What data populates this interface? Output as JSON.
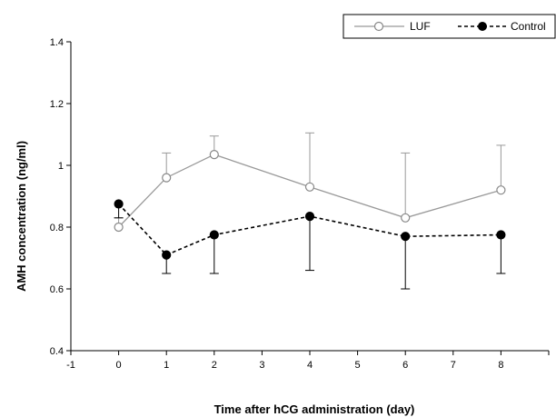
{
  "chart_data": {
    "type": "line",
    "title": "",
    "xlabel": "Time after hCG administration (day)",
    "ylabel": "AMH concentration (ng/ml)",
    "xlim": [
      -1,
      9
    ],
    "ylim": [
      0.4,
      1.4
    ],
    "x_ticks": [
      -1,
      0,
      1,
      2,
      3,
      4,
      5,
      6,
      7,
      8
    ],
    "y_ticks": [
      0.4,
      0.6,
      0.8,
      1,
      1.2,
      1.4
    ],
    "y_tick_labels": [
      "0.4",
      "0.6",
      "0.8",
      "1",
      "1.2",
      "1.4"
    ],
    "grid": false,
    "legend_position": "top-right",
    "series": [
      {
        "name": "LUF",
        "x": [
          0,
          1,
          2,
          4,
          6,
          8
        ],
        "values": [
          0.8,
          0.96,
          1.035,
          0.93,
          0.83,
          0.92
        ],
        "error_plus": [
          0.03,
          0.08,
          0.06,
          0.175,
          0.21,
          0.145
        ],
        "line_style": "solid",
        "line_color": "#999999",
        "marker": "open-circle"
      },
      {
        "name": "Control",
        "x": [
          0,
          1,
          2,
          4,
          6,
          8
        ],
        "values": [
          0.875,
          0.71,
          0.775,
          0.835,
          0.77,
          0.775
        ],
        "error_minus": [
          0.045,
          0.06,
          0.125,
          0.175,
          0.17,
          0.125
        ],
        "line_style": "dashed",
        "line_color": "#000000",
        "marker": "filled-circle"
      }
    ]
  }
}
